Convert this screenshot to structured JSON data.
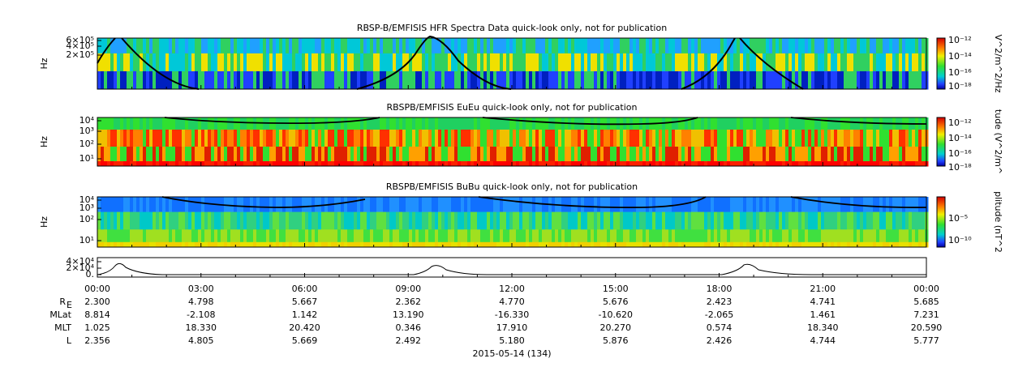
{
  "panels": [
    {
      "title": "RBSP-B/EMFISIS  HFR Spectra Data quick-look only, not for publication",
      "ylabel": "Hz",
      "yticks": [
        "6×10⁵",
        "4×10⁵",
        "2×10⁵"
      ],
      "colorbar_label": "V^2/m^2/Hz",
      "colorbar_ticks": [
        "10⁻¹²",
        "10⁻¹⁴",
        "10⁻¹⁶",
        "10⁻¹⁸"
      ]
    },
    {
      "title": "RBSPB/EMFISIS  EuEu quick-look only, not for publication",
      "ylabel": "Hz",
      "yticks": [
        "10⁴",
        "10³",
        "10²",
        "10¹"
      ],
      "colorbar_label": "tude (V^2/m^",
      "colorbar_ticks": [
        "10⁻¹²",
        "10⁻¹⁴",
        "10⁻¹⁶",
        "10⁻¹⁸"
      ]
    },
    {
      "title": "RBSPB/EMFISIS  BuBu quick-look only, not for publication",
      "ylabel": "Hz",
      "yticks": [
        "10⁴",
        "10³",
        "10²",
        "10¹"
      ],
      "colorbar_label": "plitude (nT^2",
      "colorbar_ticks": [
        "10⁻⁵",
        "10⁻¹⁰"
      ]
    },
    {
      "yticks": [
        "4×10⁴",
        "2×10⁴",
        "0."
      ]
    }
  ],
  "time_ticks": [
    "00:00",
    "03:00",
    "06:00",
    "09:00",
    "12:00",
    "15:00",
    "18:00",
    "21:00",
    "00:00"
  ],
  "ephemeris": [
    {
      "label": "R",
      "label_sub": "E",
      "values": [
        "2.300",
        "4.798",
        "5.667",
        "2.362",
        "4.770",
        "5.676",
        "2.423",
        "4.741",
        "5.685"
      ]
    },
    {
      "label": "MLat",
      "values": [
        "8.814",
        "-2.108",
        "1.142",
        "13.190",
        "-16.330",
        "-10.620",
        "-2.065",
        "1.461",
        "7.231"
      ]
    },
    {
      "label": "MLT",
      "values": [
        "1.025",
        "18.330",
        "20.420",
        "0.346",
        "17.910",
        "20.270",
        "0.574",
        "18.340",
        "20.590"
      ]
    },
    {
      "label": "L",
      "values": [
        "2.356",
        "4.805",
        "5.669",
        "2.492",
        "5.180",
        "5.876",
        "2.426",
        "4.744",
        "5.777"
      ]
    }
  ],
  "date": "2015-05-14 (134)"
}
